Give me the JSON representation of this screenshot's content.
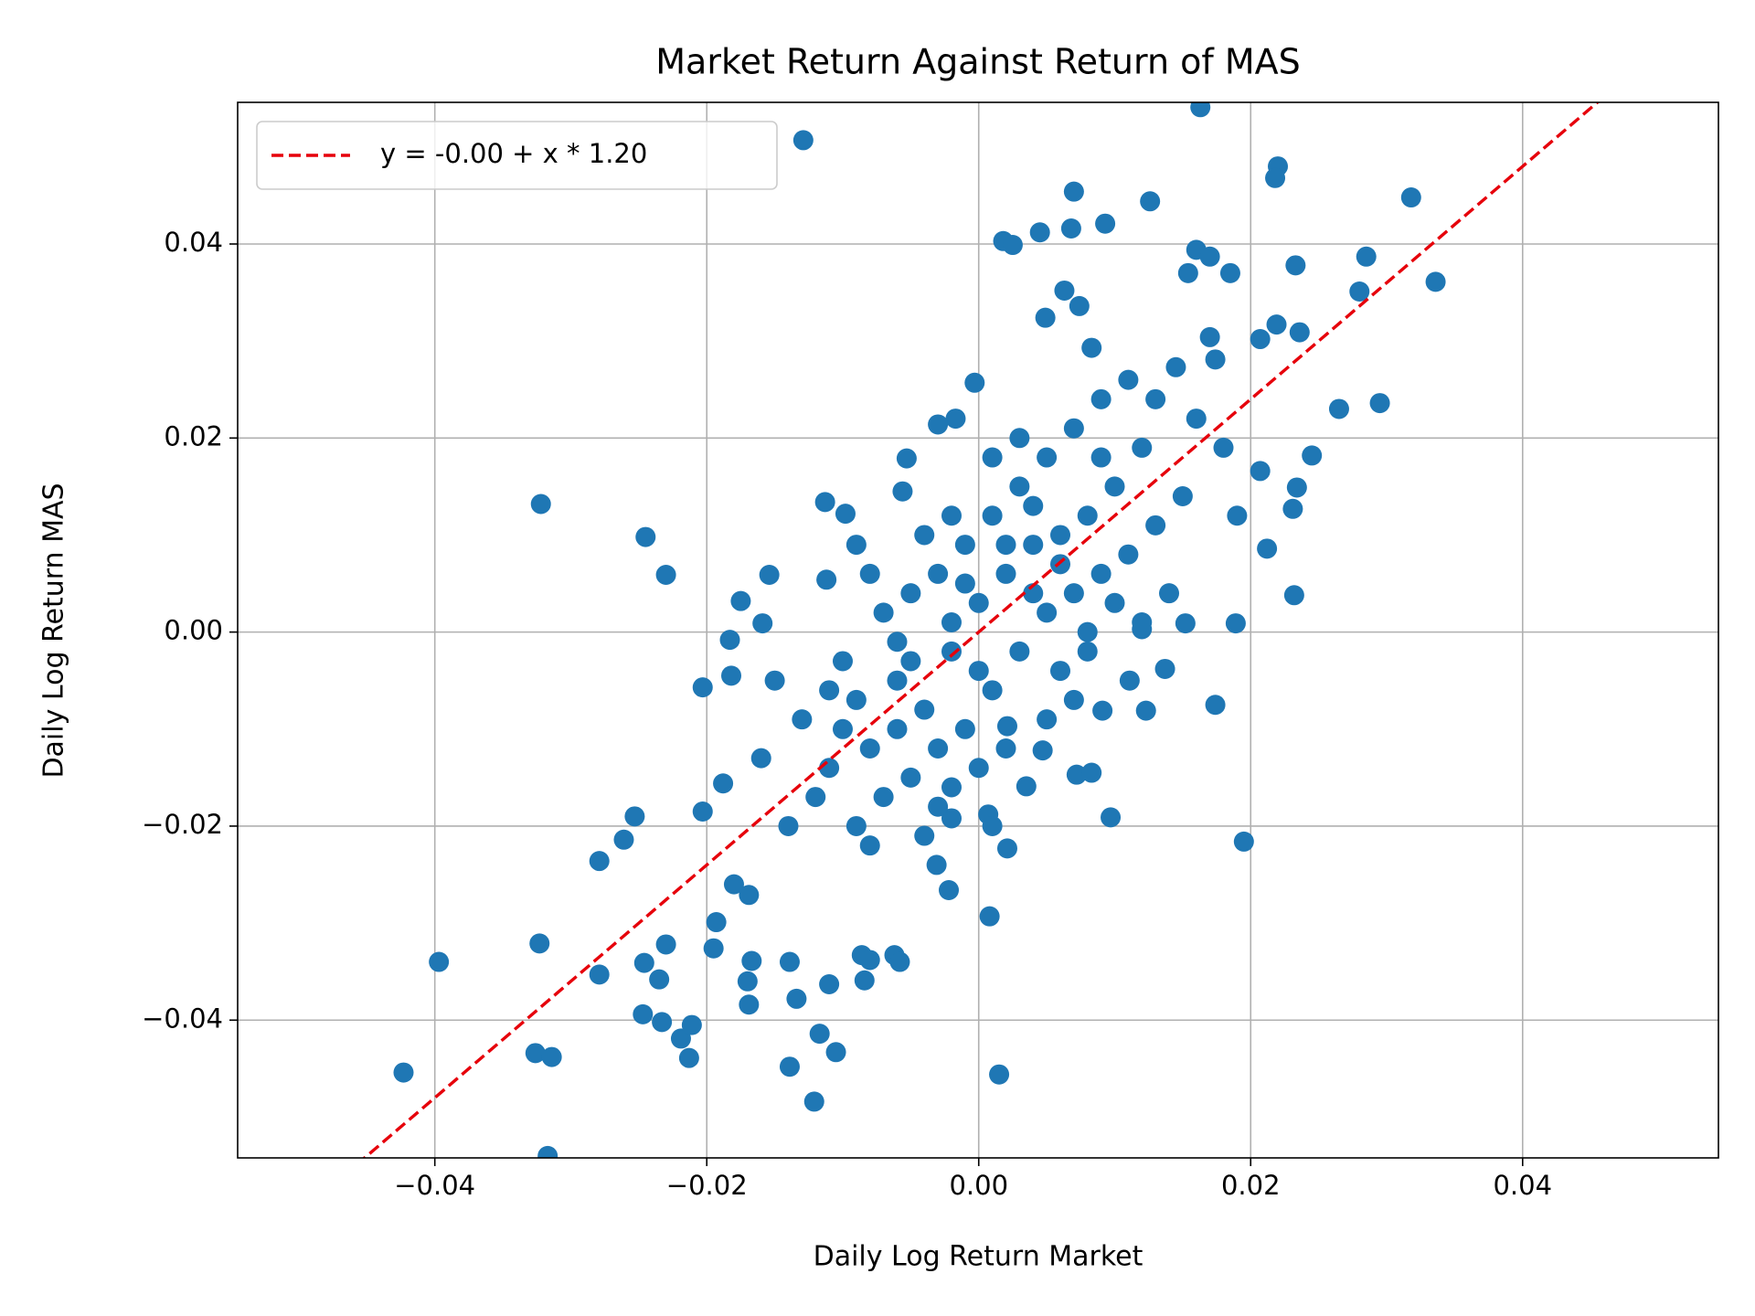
{
  "chart_data": {
    "type": "scatter",
    "title": "Market Return Against Return of MAS",
    "x_label": "Daily Log Return Market",
    "y_label": "Daily Log Return MAS",
    "xlim": [
      -0.0545,
      0.0544
    ],
    "ylim": [
      -0.0542,
      0.0546
    ],
    "xticks": [
      {
        "value": -0.04,
        "label": "−0.04"
      },
      {
        "value": -0.02,
        "label": "−0.02"
      },
      {
        "value": 0,
        "label": "0.00"
      },
      0.02,
      0.04
    ],
    "yticks": [
      {
        "value": -0.04,
        "label": "−0.04"
      },
      {
        "value": -0.02,
        "label": "−0.02"
      },
      {
        "value": 0,
        "label": "0.00"
      },
      0.02,
      0.04
    ],
    "grid": true,
    "legend": "upper left",
    "series": [
      {
        "kind": "points",
        "color": "#1f77b4",
        "x": [
          -0.0129,
          0.0163,
          -0.0322,
          -0.0245,
          -0.023,
          -0.0397,
          -0.0423,
          -0.0317,
          -0.0323,
          -0.0326,
          -0.0314,
          -0.0279,
          -0.0279,
          -0.0261,
          -0.0253,
          -0.0246,
          -0.0247,
          -0.0235,
          -0.0233,
          -0.023,
          -0.0219,
          -0.0213,
          -0.0211,
          -0.0203,
          -0.0203,
          -0.0195,
          -0.0193,
          -0.0188,
          -0.0183,
          -0.0182,
          -0.0175,
          -0.018,
          -0.017,
          -0.0169,
          -0.0167,
          -0.0169,
          -0.0159,
          -0.0154,
          -0.0139,
          -0.0139,
          -0.0134,
          -0.0121,
          -0.0117,
          -0.011,
          -0.0105,
          -0.0113,
          -0.0112,
          -0.0098,
          -0.0086,
          -0.0084,
          -0.008,
          -0.0062,
          -0.0058,
          0.0008,
          0.0015,
          0.0021,
          -0.0003,
          -0.0017,
          -0.003,
          -0.0053,
          -0.0056,
          0.0018,
          0.0025,
          0.0045,
          0.007,
          0.0068,
          0.0093,
          0.0126,
          0.016,
          0.0154,
          0.017,
          0.0185,
          0.022,
          0.0218,
          0.0233,
          0.0318,
          0.0285,
          0.028,
          0.0336,
          0.0295,
          0.0265,
          0.0245,
          0.0234,
          0.0231,
          0.0232,
          0.0212,
          0.0207,
          0.0195,
          0.0174,
          0.0189,
          0.0236,
          0.0219,
          0.0207,
          0.017,
          0.0174,
          0.0145,
          0.0123,
          0.0111,
          0.0137,
          0.0152,
          0.012,
          0.0097,
          0.0091,
          0.0072,
          0.0083,
          0.0035,
          0.0047,
          0.0021,
          0.0063,
          0.0049,
          0.0074,
          0.0083,
          -0.0022,
          -0.0031,
          -0.002,
          0.0007,
          -0.01,
          -0.008,
          -0.006,
          -0.004,
          -0.002,
          0.0,
          0.002,
          0.004,
          0.006,
          0.008,
          0.01,
          -0.012,
          -0.014,
          -0.009,
          -0.005,
          -0.003,
          -0.001,
          0.001,
          0.003,
          0.005,
          0.007,
          0.009,
          0.011,
          0.013,
          0.015,
          -0.007,
          -0.005,
          -0.003,
          -0.001,
          0.001,
          0.003,
          0.005,
          0.007,
          0.009,
          0.011,
          0.013,
          0.016,
          0.018,
          0.019,
          0.014,
          0.012,
          0.008,
          0.006,
          0.002,
          -0.002,
          -0.004,
          -0.008,
          -0.011,
          -0.013,
          -0.015,
          -0.016,
          -0.01,
          -0.006,
          -0.002,
          0.0,
          0.004,
          0.006,
          0.008,
          0.01,
          0.003,
          0.001,
          -0.002,
          -0.004,
          -0.008,
          -0.009,
          -0.006,
          -0.007,
          -0.003,
          0.0,
          0.001,
          0.005,
          0.007,
          0.009,
          0.012,
          0.004,
          0.002,
          -0.001,
          -0.005,
          -0.009,
          -0.011
        ],
        "values": [
          0.0507,
          0.0541,
          0.0132,
          0.0098,
          0.0059,
          -0.034,
          -0.0454,
          -0.054,
          -0.0321,
          -0.0434,
          -0.0438,
          -0.0236,
          -0.0353,
          -0.0214,
          -0.019,
          -0.0341,
          -0.0394,
          -0.0358,
          -0.0402,
          -0.0322,
          -0.0419,
          -0.0439,
          -0.0405,
          -0.0057,
          -0.0185,
          -0.0326,
          -0.0299,
          -0.0156,
          -0.0008,
          -0.0045,
          0.0032,
          -0.026,
          -0.036,
          -0.0384,
          -0.0339,
          -0.0271,
          0.0009,
          0.0059,
          -0.034,
          -0.0448,
          -0.0378,
          -0.0484,
          -0.0414,
          -0.0363,
          -0.0433,
          0.0134,
          0.0054,
          0.0122,
          -0.0333,
          -0.0359,
          -0.0338,
          -0.0333,
          -0.034,
          -0.0293,
          -0.0456,
          -0.0223,
          0.0257,
          0.022,
          0.0214,
          0.0179,
          0.0145,
          0.0403,
          0.0399,
          0.0412,
          0.0454,
          0.0416,
          0.0421,
          0.0444,
          0.0394,
          0.037,
          0.0387,
          0.037,
          0.048,
          0.0468,
          0.0378,
          0.0448,
          0.0387,
          0.0351,
          0.0361,
          0.0236,
          0.023,
          0.0182,
          0.0149,
          0.0127,
          0.0038,
          0.0086,
          0.0166,
          -0.0216,
          -0.0075,
          0.0009,
          0.0309,
          0.0317,
          0.0302,
          0.0304,
          0.0281,
          0.0273,
          -0.0081,
          -0.005,
          -0.0038,
          0.0009,
          0.0003,
          -0.0191,
          -0.0081,
          -0.0147,
          -0.0145,
          -0.0159,
          -0.0122,
          -0.0097,
          0.0352,
          0.0324,
          0.0336,
          0.0293,
          -0.0266,
          -0.024,
          -0.0192,
          -0.0188,
          -0.01,
          -0.012,
          -0.005,
          -0.008,
          -0.002,
          0.003,
          0.006,
          0.009,
          0.01,
          0.012,
          0.015,
          -0.017,
          -0.02,
          -0.02,
          -0.015,
          -0.012,
          -0.01,
          -0.006,
          -0.002,
          0.002,
          0.004,
          0.006,
          0.008,
          0.011,
          0.014,
          0.002,
          0.004,
          0.006,
          0.009,
          0.012,
          0.015,
          0.018,
          0.021,
          0.024,
          0.026,
          0.024,
          0.022,
          0.019,
          0.012,
          0.004,
          0.001,
          -0.002,
          -0.004,
          -0.012,
          -0.016,
          -0.021,
          -0.022,
          -0.014,
          -0.009,
          -0.005,
          -0.013,
          -0.003,
          -0.001,
          0.001,
          -0.004,
          0.004,
          0.007,
          0.0,
          0.003,
          0.02,
          0.018,
          0.012,
          0.01,
          0.006,
          0.009,
          -0.01,
          -0.017,
          -0.018,
          -0.014,
          -0.02,
          -0.009,
          -0.007,
          0.018,
          0.019,
          0.013,
          0.009,
          0.005,
          -0.003,
          -0.007,
          -0.006
        ]
      },
      {
        "kind": "line",
        "name": "y = -0.00 + x * 1.20",
        "color": "#e6000b",
        "x": [
          -0.0545,
          0.0544
        ],
        "values": [
          -0.0654,
          0.06528
        ]
      }
    ]
  }
}
